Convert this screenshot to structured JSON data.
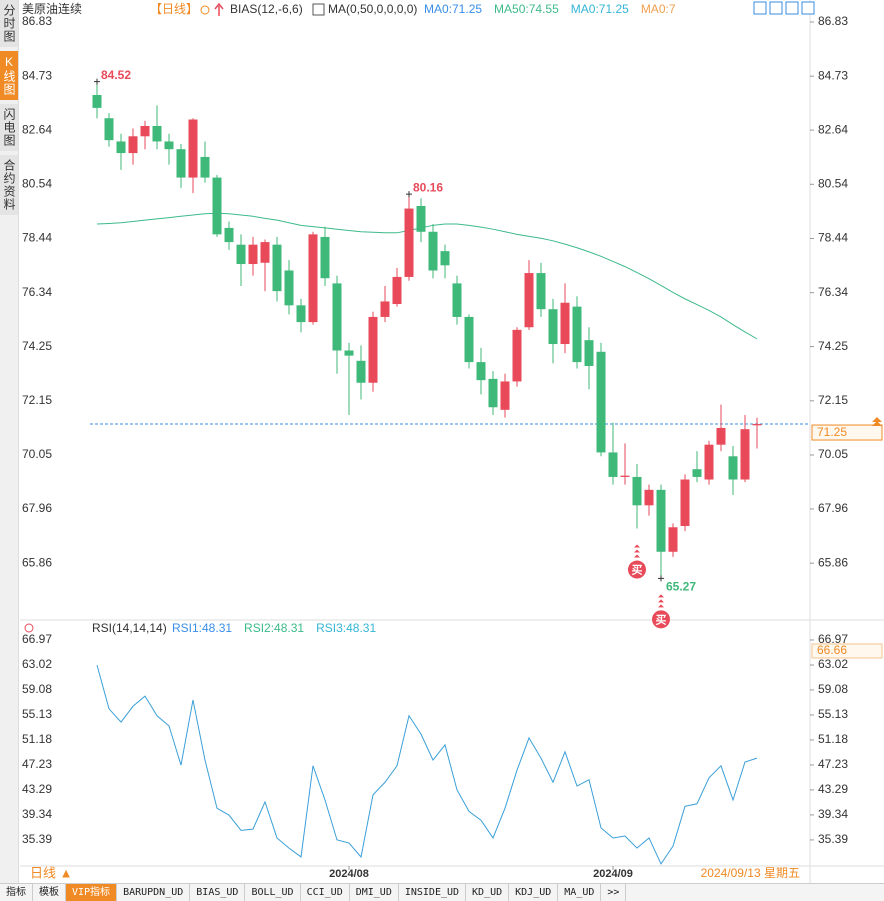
{
  "header": {
    "symbol": "美原油连续",
    "period": "【日线】",
    "bias": "BIAS(12,-6,6)",
    "ma": "MA(0,50,0,0,0,0)",
    "legend": [
      {
        "text": "MA0:71.25",
        "color": "#3a8ee6"
      },
      {
        "text": "MA50:74.55",
        "color": "#3dba8a"
      },
      {
        "text": "MA0:71.25",
        "color": "#35b5d5"
      },
      {
        "text": "MA0:7",
        "color": "#f0a050"
      }
    ]
  },
  "sidebar_tabs": [
    "分时图",
    "K线图",
    "闪电图",
    "合约资料"
  ],
  "period_tab": "日线 ▲",
  "cursor_date": "2024/09/13 星期五",
  "toolbar": [
    "指标",
    "模板",
    "VIP指标",
    "BARUPDN_UD",
    "BIAS_UD",
    "BOLL_UD",
    "CCI_UD",
    "DMI_UD",
    "INSIDE_UD",
    "KD_UD",
    "KDJ_UD",
    "MA_UD",
    ">>"
  ],
  "chart_data": [
    {
      "type": "candlestick",
      "categories": [
        null,
        null,
        null,
        null,
        null,
        null,
        null,
        null,
        null,
        null,
        null,
        null,
        null,
        null,
        null,
        null,
        null,
        null,
        null,
        null,
        null,
        "2024/08",
        null,
        null,
        null,
        null,
        null,
        null,
        null,
        null,
        null,
        null,
        null,
        null,
        null,
        null,
        null,
        null,
        null,
        null,
        null,
        null,
        null,
        "2024/09",
        null,
        null,
        null,
        null,
        null,
        null,
        null,
        null,
        null,
        null,
        null,
        null
      ],
      "open": [
        84.0,
        83.1,
        82.2,
        81.75,
        82.4,
        82.8,
        82.2,
        81.9,
        80.8,
        81.6,
        80.8,
        78.85,
        78.2,
        77.45,
        77.5,
        78.2,
        77.2,
        75.85,
        75.2,
        78.5,
        76.7,
        74.1,
        73.7,
        72.85,
        75.4,
        75.9,
        76.95,
        79.7,
        78.7,
        77.95,
        76.7,
        75.4,
        73.65,
        73.0,
        71.8,
        72.9,
        75.0,
        77.1,
        75.7,
        74.35,
        75.8,
        74.5,
        74.05,
        70.15,
        69.2,
        69.2,
        68.1,
        68.7,
        66.3,
        67.3,
        69.5,
        69.1,
        70.45,
        70.0,
        69.1,
        71.2
      ],
      "high": [
        84.52,
        83.3,
        82.5,
        82.7,
        83.0,
        83.6,
        82.5,
        82.1,
        83.1,
        82.2,
        80.9,
        79.1,
        78.6,
        78.5,
        78.4,
        78.5,
        77.6,
        76.1,
        78.7,
        78.9,
        77.0,
        74.4,
        74.3,
        75.6,
        76.6,
        77.3,
        80.16,
        80.0,
        79.0,
        78.2,
        77.0,
        75.5,
        74.2,
        73.3,
        73.2,
        75.0,
        77.6,
        77.5,
        76.1,
        76.7,
        76.2,
        75.0,
        74.4,
        71.3,
        70.5,
        69.7,
        68.9,
        68.9,
        67.4,
        69.3,
        70.2,
        70.6,
        72.0,
        70.4,
        71.6,
        71.5
      ],
      "low": [
        83.1,
        82.0,
        81.1,
        81.3,
        81.9,
        81.9,
        81.3,
        80.4,
        80.2,
        80.6,
        78.5,
        78.0,
        76.6,
        77.0,
        76.4,
        76.0,
        75.5,
        74.8,
        75.1,
        76.6,
        73.2,
        71.6,
        72.2,
        72.5,
        75.2,
        75.8,
        76.8,
        78.3,
        76.9,
        76.9,
        75.1,
        73.4,
        72.4,
        71.6,
        71.5,
        72.7,
        74.9,
        75.4,
        73.6,
        74.0,
        73.4,
        72.6,
        70.0,
        68.9,
        68.9,
        67.2,
        67.7,
        65.27,
        66.1,
        67.1,
        69.0,
        68.9,
        70.2,
        68.5,
        69.0,
        70.3
      ],
      "close": [
        83.5,
        82.25,
        81.75,
        82.4,
        82.8,
        82.2,
        81.9,
        80.8,
        83.05,
        80.8,
        78.6,
        78.3,
        77.45,
        78.2,
        78.3,
        76.4,
        75.85,
        75.2,
        78.6,
        76.9,
        74.1,
        73.9,
        72.85,
        75.4,
        76.0,
        76.95,
        79.6,
        78.7,
        77.2,
        77.4,
        75.4,
        73.65,
        72.95,
        71.9,
        72.9,
        74.9,
        77.1,
        75.7,
        74.35,
        75.95,
        73.65,
        73.5,
        70.15,
        69.2,
        69.25,
        68.1,
        68.7,
        66.3,
        67.25,
        69.1,
        69.2,
        70.45,
        71.1,
        69.1,
        71.05,
        71.25
      ],
      "high_labels": [
        "84.52",
        null,
        null,
        null,
        null,
        null,
        null,
        null,
        null,
        null,
        null,
        null,
        null,
        null,
        null,
        null,
        null,
        null,
        null,
        null,
        null,
        null,
        null,
        null,
        null,
        null,
        "80.16",
        null,
        null,
        null,
        null,
        null,
        null,
        null,
        null,
        null,
        null,
        null,
        null,
        null,
        null,
        null,
        null,
        null,
        null,
        null,
        null,
        null,
        null,
        null,
        null,
        null,
        null,
        null,
        null,
        null
      ],
      "low_labels": [
        null,
        null,
        null,
        null,
        null,
        null,
        null,
        null,
        null,
        null,
        null,
        null,
        null,
        null,
        null,
        null,
        null,
        null,
        null,
        null,
        null,
        null,
        null,
        null,
        null,
        null,
        null,
        null,
        null,
        null,
        null,
        null,
        null,
        null,
        null,
        null,
        null,
        null,
        null,
        null,
        null,
        null,
        null,
        null,
        null,
        null,
        null,
        "65.27",
        null,
        null,
        null,
        null,
        null,
        null,
        null,
        null
      ],
      "signals": [
        null,
        null,
        null,
        null,
        null,
        null,
        null,
        null,
        null,
        null,
        null,
        null,
        null,
        null,
        null,
        null,
        null,
        null,
        null,
        null,
        null,
        null,
        null,
        null,
        null,
        null,
        null,
        null,
        null,
        null,
        null,
        null,
        null,
        null,
        null,
        null,
        null,
        null,
        null,
        null,
        null,
        null,
        null,
        null,
        null,
        "买",
        null,
        "买",
        null,
        null,
        null,
        null,
        null,
        null,
        null,
        null
      ],
      "up_color": "#e84a5a",
      "down_color": "#3fb97a",
      "ma_line": {
        "color": "#3dba8a",
        "values": [
          79.0,
          79.02,
          79.05,
          79.1,
          79.15,
          79.2,
          79.25,
          79.3,
          79.35,
          79.4,
          79.42,
          79.4,
          79.35,
          79.3,
          79.22,
          79.15,
          79.05,
          78.95,
          78.9,
          78.85,
          78.8,
          78.75,
          78.7,
          78.68,
          78.66,
          78.66,
          78.75,
          78.85,
          78.95,
          79.0,
          79.0,
          78.95,
          78.88,
          78.8,
          78.7,
          78.6,
          78.52,
          78.45,
          78.35,
          78.22,
          78.08,
          77.92,
          77.75,
          77.55,
          77.35,
          77.12,
          76.88,
          76.62,
          76.35,
          76.1,
          75.88,
          75.65,
          75.4,
          75.1,
          74.82,
          74.55
        ]
      },
      "current_price": 71.25,
      "ylim": [
        63.85,
        87.1
      ],
      "yticks": [
        86.83,
        84.73,
        82.64,
        80.54,
        78.44,
        76.34,
        74.25,
        72.15,
        70.05,
        67.96,
        65.86
      ]
    },
    {
      "type": "line",
      "title": "RSI(14,14,14)",
      "legend": [
        {
          "text": "RSI1:48.31",
          "color": "#3a8ee6"
        },
        {
          "text": "RSI2:48.31",
          "color": "#3dba8a"
        },
        {
          "text": "RSI3:48.31",
          "color": "#35b5d5"
        }
      ],
      "values": [
        63.0,
        56.1,
        54.0,
        56.5,
        58.1,
        55.0,
        53.4,
        47.2,
        57.5,
        48.0,
        40.4,
        39.3,
        36.9,
        37.1,
        41.4,
        35.7,
        34.1,
        32.7,
        47.1,
        41.7,
        35.4,
        34.9,
        32.7,
        42.5,
        44.5,
        47.1,
        55.0,
        52.1,
        48.0,
        50.4,
        43.3,
        39.9,
        38.5,
        35.7,
        40.4,
        46.4,
        51.5,
        48.3,
        44.5,
        49.3,
        43.9,
        44.9,
        37.3,
        35.7,
        36.0,
        34.1,
        35.7,
        31.6,
        34.4,
        40.7,
        41.1,
        45.2,
        47.1,
        41.7,
        47.7,
        48.31
      ],
      "color": "#3a9fd8",
      "marker_label": 66.66,
      "ylim": [
        31.43,
        68.23
      ],
      "yticks": [
        66.97,
        63.02,
        59.08,
        55.13,
        51.18,
        47.23,
        43.29,
        39.34,
        35.39
      ]
    }
  ]
}
